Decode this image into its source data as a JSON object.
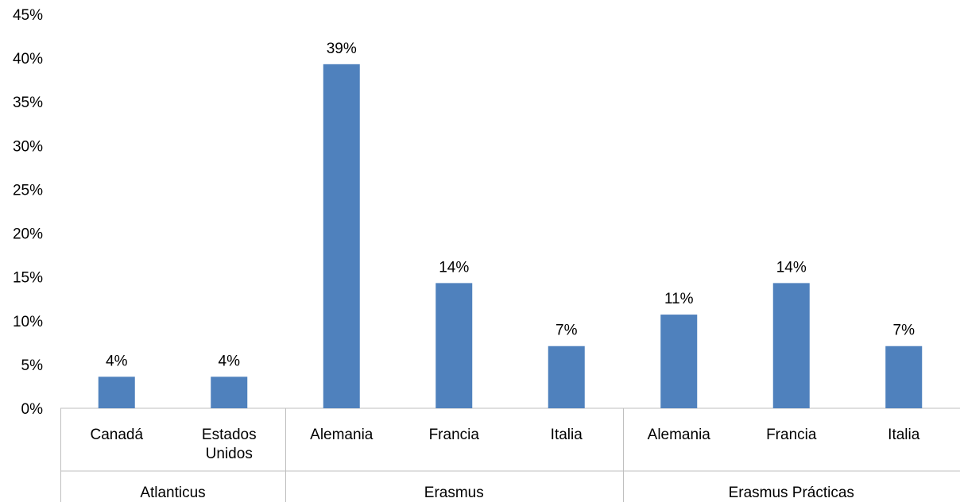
{
  "chart_data": {
    "type": "bar",
    "title": "",
    "xlabel": "",
    "ylabel": "",
    "ylim": [
      0,
      0.45
    ],
    "yticks": [
      "0%",
      "5%",
      "10%",
      "15%",
      "20%",
      "25%",
      "30%",
      "35%",
      "40%",
      "45%"
    ],
    "grid": false,
    "legend": "none",
    "bar_color": "#4f81bd",
    "groups": [
      {
        "label": "Atlanticus",
        "categories": [
          "Canadá",
          "Estados Unidos"
        ]
      },
      {
        "label": "Erasmus",
        "categories": [
          "Alemania",
          "Francia",
          "Italia"
        ]
      },
      {
        "label": "Erasmus Prácticas",
        "categories": [
          "Alemania",
          "Francia",
          "Italia"
        ]
      }
    ],
    "categories": [
      "Canadá",
      "Estados Unidos",
      "Alemania",
      "Francia",
      "Italia",
      "Alemania",
      "Francia",
      "Italia"
    ],
    "values": [
      0.036,
      0.036,
      0.393,
      0.143,
      0.071,
      0.107,
      0.143,
      0.071
    ],
    "data_labels": [
      "4%",
      "4%",
      "39%",
      "14%",
      "7%",
      "11%",
      "14%",
      "7%"
    ]
  }
}
